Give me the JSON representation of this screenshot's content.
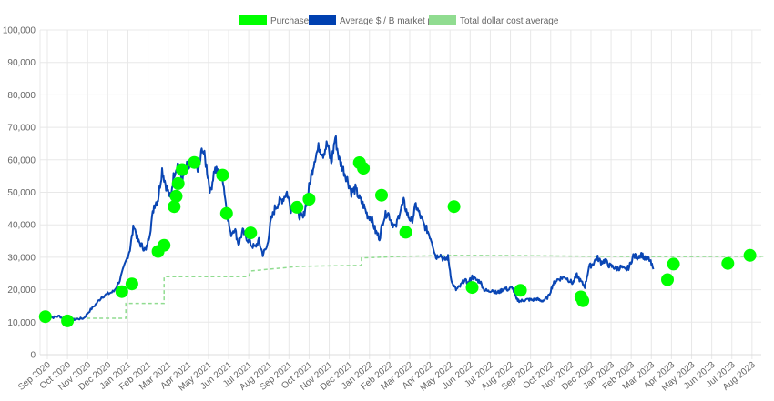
{
  "legend": {
    "items": [
      {
        "label": "Purchases",
        "color": "#00ff00",
        "style": "box"
      },
      {
        "label": "Average $ / B market price",
        "color": "#0040b0",
        "style": "box"
      },
      {
        "label": "Total dollar cost average",
        "color": "#90dc90",
        "style": "dashed"
      }
    ]
  },
  "colors": {
    "price_line": "#0a46b4",
    "purchase_point": "#00ff00",
    "dca_line": "#90dc90",
    "grid": "#e8e8e8",
    "tick_text": "#666666"
  },
  "chart_data": {
    "type": "line",
    "title": "",
    "xlabel": "",
    "ylabel": "",
    "ylim": [
      0,
      100000
    ],
    "y_ticks": [
      "0",
      "10,000",
      "20,000",
      "30,000",
      "40,000",
      "50,000",
      "60,000",
      "70,000",
      "80,000",
      "90,000",
      "100,000"
    ],
    "x_ticks": [
      "Sep 2020",
      "Oct 2020",
      "Nov 2020",
      "Dec 2020",
      "Jan 2021",
      "Feb 2021",
      "Mar 2021",
      "Apr 2021",
      "May 2021",
      "Jun 2021",
      "Jul 2021",
      "Aug 2021",
      "Sep 2021",
      "Oct 2021",
      "Nov 2021",
      "Dec 2021",
      "Jan 2022",
      "Feb 2022",
      "Mar 2022",
      "Apr 2022",
      "May 2022",
      "Jun 2022",
      "Jul 2022",
      "Aug 2022",
      "Sep 2022",
      "Oct 2022",
      "Nov 2022",
      "Dec 2022",
      "Jan 2023",
      "Feb 2023",
      "Mar 2023",
      "Apr 2023",
      "May 2023",
      "Jun 2023",
      "Jul 2023",
      "Aug 2023"
    ],
    "grid": true,
    "legend_position": "top",
    "series": [
      {
        "name": "Average $ / B market price",
        "type": "line",
        "points": [
          [
            -0.1,
            11800
          ],
          [
            0.3,
            11500
          ],
          [
            0.6,
            11900
          ],
          [
            0.9,
            10600
          ],
          [
            1.2,
            10700
          ],
          [
            1.5,
            11000
          ],
          [
            1.8,
            11200
          ],
          [
            2.1,
            13500
          ],
          [
            2.4,
            15500
          ],
          [
            2.7,
            17800
          ],
          [
            3.0,
            18700
          ],
          [
            3.3,
            19500
          ],
          [
            3.6,
            23000
          ],
          [
            3.9,
            28500
          ],
          [
            4.1,
            32500
          ],
          [
            4.3,
            40000
          ],
          [
            4.5,
            35000
          ],
          [
            4.7,
            33500
          ],
          [
            4.9,
            32000
          ],
          [
            5.1,
            38000
          ],
          [
            5.3,
            46000
          ],
          [
            5.5,
            48000
          ],
          [
            5.7,
            57000
          ],
          [
            5.9,
            52000
          ],
          [
            6.1,
            48000
          ],
          [
            6.3,
            56000
          ],
          [
            6.5,
            59000
          ],
          [
            6.7,
            53000
          ],
          [
            6.9,
            58000
          ],
          [
            7.1,
            57000
          ],
          [
            7.3,
            60000
          ],
          [
            7.5,
            56000
          ],
          [
            7.7,
            64000
          ],
          [
            7.9,
            58000
          ],
          [
            8.1,
            50000
          ],
          [
            8.3,
            57000
          ],
          [
            8.5,
            56000
          ],
          [
            8.7,
            55000
          ],
          [
            8.9,
            45000
          ],
          [
            9.1,
            37000
          ],
          [
            9.3,
            39000
          ],
          [
            9.5,
            34000
          ],
          [
            9.7,
            38000
          ],
          [
            9.9,
            36000
          ],
          [
            10.1,
            34000
          ],
          [
            10.3,
            33000
          ],
          [
            10.5,
            35000
          ],
          [
            10.7,
            31000
          ],
          [
            10.9,
            33000
          ],
          [
            11.1,
            41000
          ],
          [
            11.3,
            45000
          ],
          [
            11.5,
            47000
          ],
          [
            11.7,
            48000
          ],
          [
            11.9,
            50000
          ],
          [
            12.1,
            45000
          ],
          [
            12.3,
            47000
          ],
          [
            12.5,
            43000
          ],
          [
            12.7,
            42000
          ],
          [
            12.9,
            48000
          ],
          [
            13.1,
            55000
          ],
          [
            13.3,
            61000
          ],
          [
            13.5,
            64000
          ],
          [
            13.7,
            62000
          ],
          [
            13.9,
            65000
          ],
          [
            14.1,
            59000
          ],
          [
            14.3,
            67000
          ],
          [
            14.5,
            60000
          ],
          [
            14.7,
            57000
          ],
          [
            14.9,
            54000
          ],
          [
            15.1,
            50000
          ],
          [
            15.3,
            51000
          ],
          [
            15.5,
            48000
          ],
          [
            15.7,
            46000
          ],
          [
            15.9,
            43000
          ],
          [
            16.1,
            42000
          ],
          [
            16.3,
            38000
          ],
          [
            16.5,
            36000
          ],
          [
            16.7,
            42000
          ],
          [
            16.9,
            44000
          ],
          [
            17.1,
            41000
          ],
          [
            17.3,
            39000
          ],
          [
            17.5,
            44000
          ],
          [
            17.7,
            47000
          ],
          [
            17.9,
            43000
          ],
          [
            18.1,
            41000
          ],
          [
            18.3,
            46000
          ],
          [
            18.5,
            43000
          ],
          [
            18.7,
            40000
          ],
          [
            18.9,
            38000
          ],
          [
            19.1,
            35000
          ],
          [
            19.3,
            30000
          ],
          [
            19.5,
            31000
          ],
          [
            19.7,
            29000
          ],
          [
            19.9,
            30000
          ],
          [
            20.1,
            22000
          ],
          [
            20.3,
            20000
          ],
          [
            20.5,
            21000
          ],
          [
            20.7,
            23000
          ],
          [
            20.9,
            22000
          ],
          [
            21.1,
            24000
          ],
          [
            21.3,
            23000
          ],
          [
            21.5,
            22500
          ],
          [
            21.7,
            20000
          ],
          [
            21.9,
            19500
          ],
          [
            22.1,
            20000
          ],
          [
            22.3,
            19000
          ],
          [
            22.5,
            19500
          ],
          [
            22.7,
            20500
          ],
          [
            22.9,
            20000
          ],
          [
            23.1,
            20800
          ],
          [
            23.3,
            17000
          ],
          [
            23.5,
            16500
          ],
          [
            23.7,
            16800
          ],
          [
            23.9,
            17000
          ],
          [
            24.1,
            16800
          ],
          [
            24.3,
            17200
          ],
          [
            24.5,
            16600
          ],
          [
            24.7,
            16800
          ],
          [
            24.9,
            18000
          ],
          [
            25.1,
            21500
          ],
          [
            25.3,
            23000
          ],
          [
            25.5,
            23500
          ],
          [
            25.7,
            24000
          ],
          [
            25.9,
            23000
          ],
          [
            26.1,
            22000
          ],
          [
            26.3,
            24500
          ],
          [
            26.5,
            22500
          ],
          [
            26.7,
            21000
          ],
          [
            26.9,
            27000
          ],
          [
            27.1,
            28000
          ],
          [
            27.3,
            30000
          ],
          [
            27.5,
            28500
          ],
          [
            27.7,
            29000
          ],
          [
            27.9,
            27500
          ],
          [
            28.1,
            27000
          ],
          [
            28.3,
            26500
          ],
          [
            28.5,
            27000
          ],
          [
            28.7,
            26000
          ],
          [
            28.9,
            27000
          ],
          [
            29.1,
            30500
          ],
          [
            29.3,
            30000
          ],
          [
            29.5,
            31000
          ],
          [
            29.7,
            29500
          ],
          [
            29.9,
            29300
          ],
          [
            30.1,
            26300
          ]
        ]
      },
      {
        "name": "Purchases",
        "type": "scatter",
        "points": [
          [
            -0.1,
            11700
          ],
          [
            1.0,
            10400
          ],
          [
            3.7,
            19400
          ],
          [
            4.2,
            21800
          ],
          [
            5.5,
            31800
          ],
          [
            5.8,
            33700
          ],
          [
            6.3,
            45600
          ],
          [
            6.4,
            48800
          ],
          [
            6.5,
            52700
          ],
          [
            6.7,
            57000
          ],
          [
            7.3,
            59200
          ],
          [
            8.7,
            55300
          ],
          [
            8.9,
            43500
          ],
          [
            10.1,
            37500
          ],
          [
            12.4,
            45400
          ],
          [
            13.0,
            47900
          ],
          [
            15.5,
            59100
          ],
          [
            15.7,
            57400
          ],
          [
            16.6,
            49100
          ],
          [
            17.8,
            37700
          ],
          [
            20.2,
            45600
          ],
          [
            21.1,
            20700
          ],
          [
            23.5,
            19800
          ],
          [
            26.5,
            17800
          ],
          [
            26.6,
            16600
          ],
          [
            30.8,
            23100
          ],
          [
            31.1,
            27900
          ],
          [
            33.8,
            28100
          ],
          [
            34.9,
            30600
          ]
        ]
      },
      {
        "name": "Total dollar cost average",
        "type": "step",
        "dashed": true,
        "points": [
          [
            1.0,
            11200
          ],
          [
            3.9,
            11200
          ],
          [
            3.9,
            15800
          ],
          [
            5.8,
            15800
          ],
          [
            5.8,
            24000
          ],
          [
            10.0,
            24000
          ],
          [
            10.1,
            25800
          ],
          [
            12.5,
            27200
          ],
          [
            14.4,
            27400
          ],
          [
            15.6,
            27500
          ],
          [
            15.6,
            29800
          ],
          [
            17.8,
            30300
          ],
          [
            20.2,
            30600
          ],
          [
            23.5,
            30500
          ],
          [
            27.0,
            30300
          ],
          [
            30.8,
            30200
          ],
          [
            35.6,
            30300
          ]
        ]
      }
    ]
  }
}
